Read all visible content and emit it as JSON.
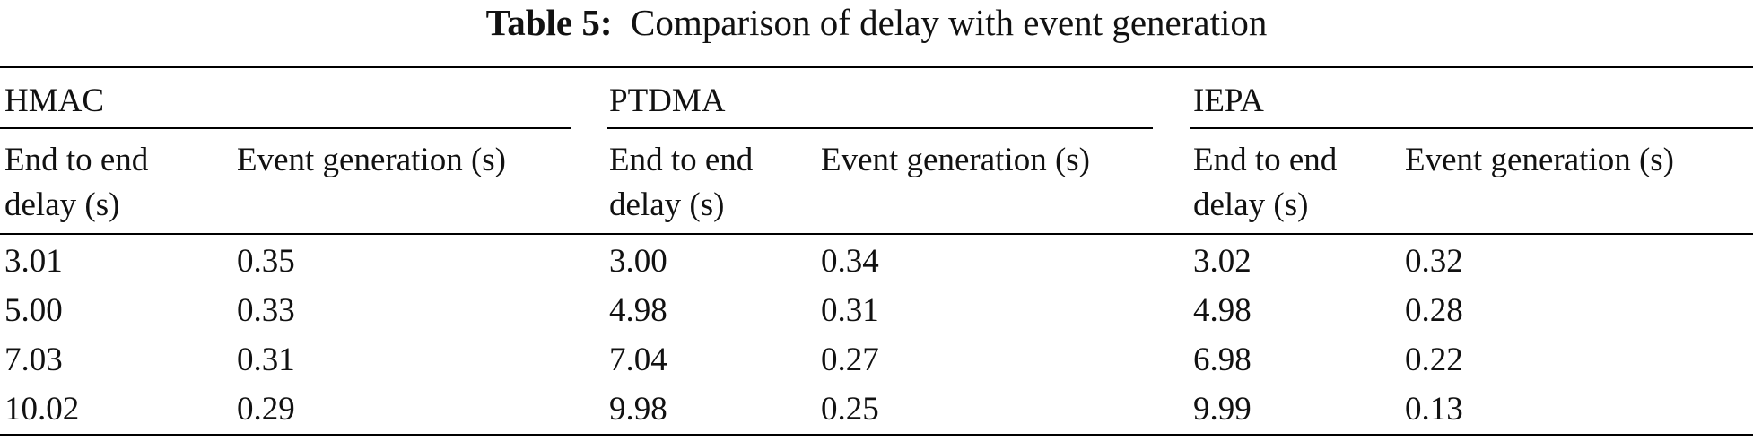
{
  "caption": {
    "label": "Table 5:",
    "text": "Comparison of delay with event generation"
  },
  "groups": [
    {
      "name": "HMAC",
      "col1_header_line1": "End to end",
      "col1_header_line2": "delay (s)",
      "col2_header": "Event generation (s)",
      "rows": [
        {
          "delay": "3.01",
          "event": "0.35"
        },
        {
          "delay": "5.00",
          "event": "0.33"
        },
        {
          "delay": "7.03",
          "event": "0.31"
        },
        {
          "delay": "10.02",
          "event": "0.29"
        }
      ]
    },
    {
      "name": "PTDMA",
      "col1_header_line1": "End to end",
      "col1_header_line2": "delay (s)",
      "col2_header": "Event generation (s)",
      "rows": [
        {
          "delay": "3.00",
          "event": "0.34"
        },
        {
          "delay": "4.98",
          "event": "0.31"
        },
        {
          "delay": "7.04",
          "event": "0.27"
        },
        {
          "delay": "9.98",
          "event": "0.25"
        }
      ]
    },
    {
      "name": "IEPA",
      "col1_header_line1": "End to end",
      "col1_header_line2": "delay (s)",
      "col2_header": "Event generation (s)",
      "rows": [
        {
          "delay": "3.02",
          "event": "0.32"
        },
        {
          "delay": "4.98",
          "event": "0.28"
        },
        {
          "delay": "6.98",
          "event": "0.22"
        },
        {
          "delay": "9.99",
          "event": "0.13"
        }
      ]
    }
  ]
}
